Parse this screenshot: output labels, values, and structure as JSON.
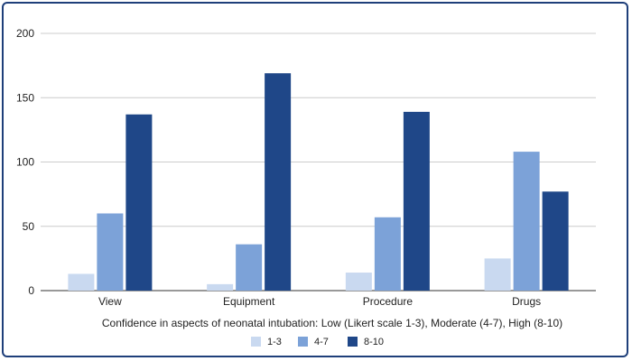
{
  "chart_data": {
    "type": "bar",
    "title": "",
    "xlabel": "Confidence in aspects of neonatal intubation: Low (Likert scale 1-3), Moderate (4-7), High (8-10)",
    "ylabel": "",
    "ylim": [
      0,
      200
    ],
    "yticks": [
      0,
      50,
      100,
      150,
      200
    ],
    "categories": [
      "View",
      "Equipment",
      "Procedure",
      "Drugs"
    ],
    "series": [
      {
        "name": "1-3",
        "color": "#c9d9f0",
        "values": [
          13,
          5,
          14,
          25
        ]
      },
      {
        "name": "4-7",
        "color": "#7ca2d8",
        "values": [
          60,
          36,
          57,
          108
        ]
      },
      {
        "name": "8-10",
        "color": "#1f4788",
        "values": [
          137,
          169,
          139,
          77
        ]
      }
    ],
    "grid": true,
    "legend_position": "bottom"
  }
}
